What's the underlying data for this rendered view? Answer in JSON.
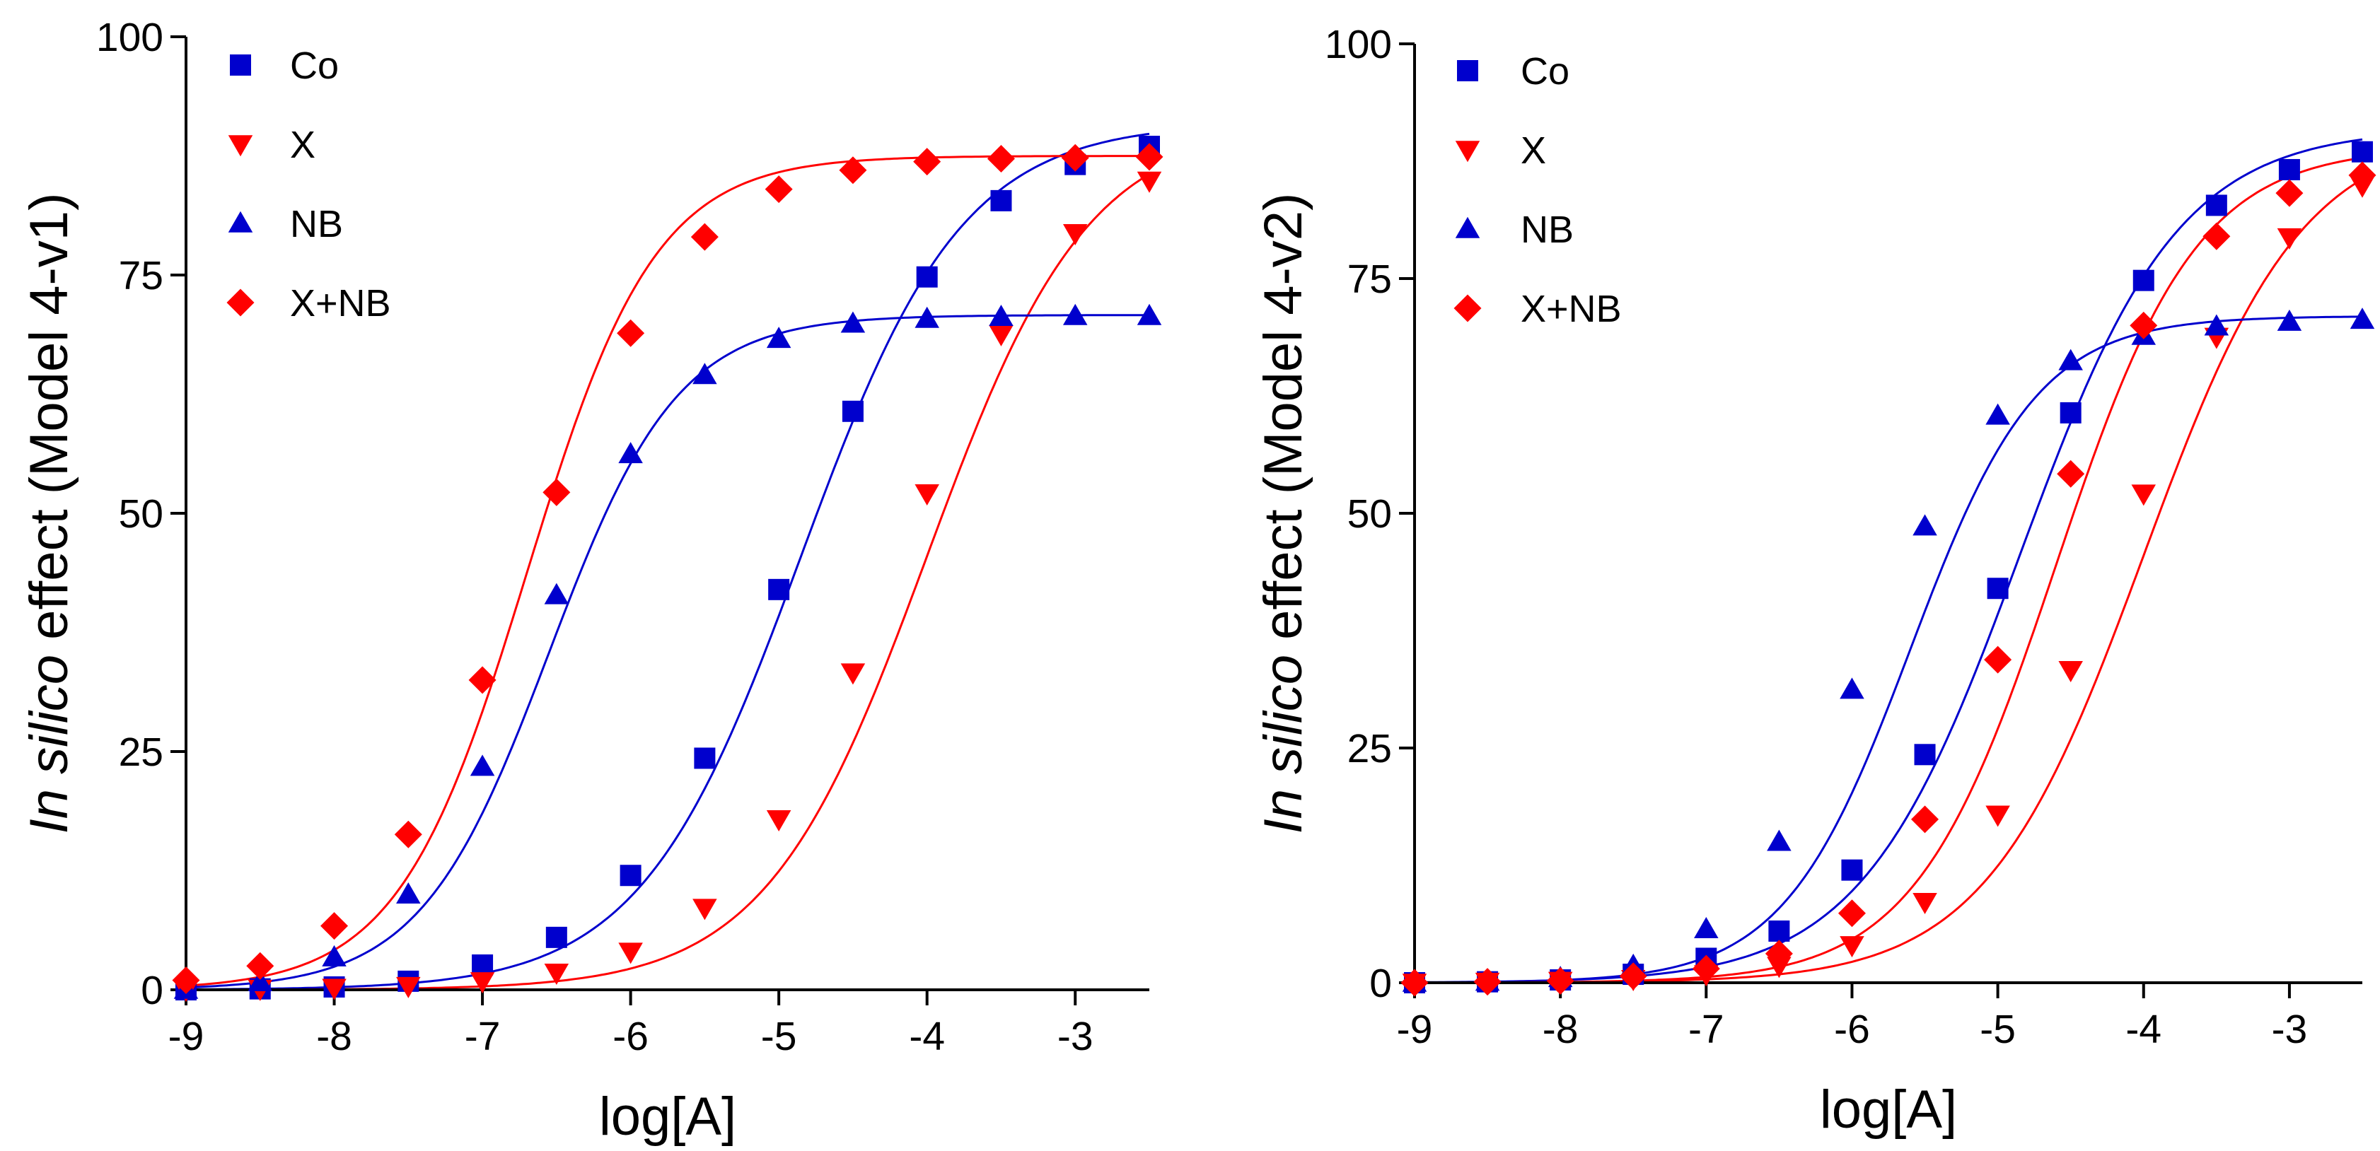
{
  "colors": {
    "blue": "#0000cd",
    "red": "#ff0000",
    "axis": "#000000"
  },
  "chart_data": [
    {
      "type": "line",
      "xlabel": "log[A]",
      "ylabel_italic": "In silico",
      "ylabel_rest": " effect (Model 4-v1)",
      "xlim": [
        -9,
        -2.5
      ],
      "ylim": [
        0,
        100
      ],
      "xticks": [
        -9,
        -8,
        -7,
        -6,
        -5,
        -4,
        -3
      ],
      "yticks": [
        0,
        25,
        50,
        75,
        100
      ],
      "x": [
        -9,
        -8.5,
        -8,
        -7.5,
        -7,
        -6.5,
        -6,
        -5.5,
        -5,
        -4.5,
        -4,
        -3.5,
        -3,
        -2.5
      ],
      "legend_position": "top-left",
      "series": [
        {
          "name": "Co",
          "marker": "square",
          "color": "#0000cd",
          "values": [
            0.0,
            0.1,
            0.3,
            0.9,
            2.6,
            5.5,
            12.0,
            24.3,
            42.0,
            60.7,
            74.8,
            82.8,
            86.6,
            88.5
          ],
          "fit": {
            "bottom": 0,
            "top": 91,
            "logEC50": -4.85,
            "hill": 0.8
          }
        },
        {
          "name": "X",
          "marker": "triangle-down",
          "color": "#ff0000",
          "values": [
            0.0,
            0.1,
            0.2,
            0.4,
            0.9,
            1.8,
            4.0,
            8.6,
            17.9,
            33.3,
            52.1,
            68.8,
            79.4,
            84.9
          ],
          "fit": {
            "bottom": 0,
            "top": 91,
            "logEC50": -4.0,
            "hill": 0.8
          }
        },
        {
          "name": "NB",
          "marker": "triangle-up",
          "color": "#0000cd",
          "values": [
            0.0,
            0.8,
            3.4,
            10.0,
            23.4,
            41.4,
            56.2,
            64.5,
            68.3,
            69.9,
            70.4,
            70.6,
            70.7,
            70.7
          ],
          "fit": {
            "bottom": 0,
            "top": 70.8,
            "logEC50": -6.55,
            "hill": 1.0
          }
        },
        {
          "name": "X+NB",
          "marker": "diamond",
          "color": "#ff0000",
          "values": [
            1.0,
            2.5,
            6.7,
            16.3,
            32.5,
            52.2,
            68.9,
            79.0,
            84.0,
            86.0,
            86.9,
            87.2,
            87.3,
            87.4
          ],
          "fit": {
            "bottom": 0,
            "top": 87.5,
            "logEC50": -6.7,
            "hill": 1.0
          }
        }
      ]
    },
    {
      "type": "line",
      "xlabel": "log[A]",
      "ylabel_italic": "In silico",
      "ylabel_rest": " effect (Model 4-v2)",
      "xlim": [
        -9,
        -2.5
      ],
      "ylim": [
        0,
        100
      ],
      "xticks": [
        -9,
        -8,
        -7,
        -6,
        -5,
        -4,
        -3
      ],
      "yticks": [
        0,
        25,
        50,
        75,
        100
      ],
      "x": [
        -9,
        -8.5,
        -8,
        -7.5,
        -7,
        -6.5,
        -6,
        -5.5,
        -5,
        -4.5,
        -4,
        -3.5,
        -3,
        -2.5
      ],
      "legend_position": "top-left",
      "series": [
        {
          "name": "Co",
          "marker": "square",
          "color": "#0000cd",
          "values": [
            0.0,
            0.1,
            0.3,
            0.9,
            2.6,
            5.5,
            12.0,
            24.3,
            42.0,
            60.7,
            74.8,
            82.8,
            86.6,
            88.5
          ],
          "fit": {
            "bottom": 0,
            "top": 91,
            "logEC50": -4.85,
            "hill": 0.8
          }
        },
        {
          "name": "X",
          "marker": "triangle-down",
          "color": "#ff0000",
          "values": [
            0.0,
            0.1,
            0.2,
            0.4,
            0.9,
            1.8,
            4.0,
            8.6,
            17.9,
            33.3,
            52.1,
            68.8,
            79.4,
            84.9
          ],
          "fit": {
            "bottom": 0,
            "top": 91,
            "logEC50": -4.0,
            "hill": 0.8
          }
        },
        {
          "name": "NB",
          "marker": "triangle-up",
          "color": "#0000cd",
          "values": [
            0.0,
            0.1,
            0.5,
            1.8,
            5.7,
            15.0,
            31.2,
            48.6,
            60.4,
            66.2,
            68.9,
            69.9,
            70.4,
            70.6
          ],
          "fit": {
            "bottom": 0,
            "top": 71.0,
            "logEC50": -5.6,
            "hill": 1.0
          }
        },
        {
          "name": "X+NB",
          "marker": "diamond",
          "color": "#ff0000",
          "values": [
            0.0,
            0.1,
            0.2,
            0.7,
            1.5,
            3.1,
            7.4,
            17.4,
            34.4,
            54.2,
            70.0,
            79.5,
            84.1,
            86.0
          ],
          "fit": {
            "bottom": 0,
            "top": 89.0,
            "logEC50": -4.6,
            "hill": 0.9
          }
        }
      ]
    }
  ]
}
